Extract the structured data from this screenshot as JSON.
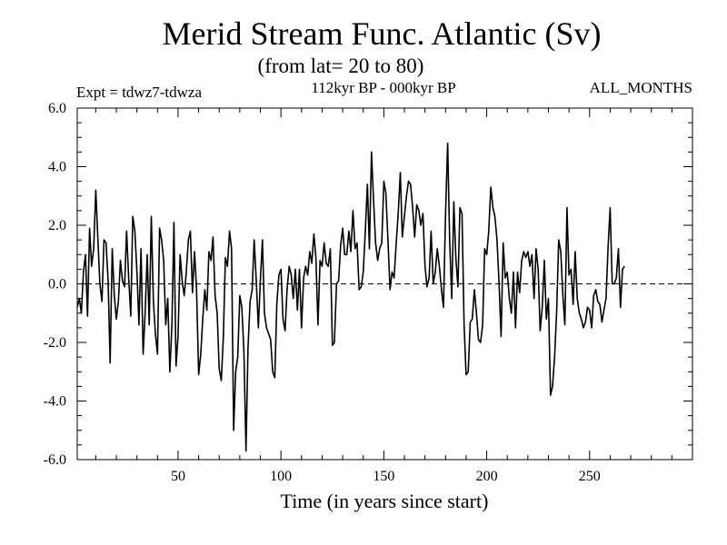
{
  "chart_data": {
    "type": "line",
    "title": "Merid Stream Func. Atlantic (Sv)",
    "subtitle": "(from lat= 20 to 80)",
    "annotations": {
      "left": "Expt = tdwz7-tdwza",
      "center": "112kyr BP - 000kyr BP",
      "right": "ALL_MONTHS"
    },
    "xlabel": "Time (in years since start)",
    "ylabel": "",
    "xlim": [
      1,
      300
    ],
    "ylim": [
      -6,
      6
    ],
    "x_ticks": [
      50,
      100,
      150,
      200,
      250
    ],
    "x_tick_labels": [
      "50",
      "100",
      "150",
      "200",
      "250"
    ],
    "y_ticks": [
      -6,
      -4,
      -2,
      0,
      2,
      4,
      6
    ],
    "y_tick_labels": [
      "-6.0",
      "-4.0",
      "-2.0",
      "0.0",
      "2.0",
      "4.0",
      "6.0"
    ],
    "grid": false,
    "zero_line": "dashed",
    "x_start": 1,
    "x_step": 1,
    "series": [
      {
        "values": [
          -0.8,
          -0.5,
          -1.0,
          0.4,
          1.0,
          -1.1,
          1.9,
          0.6,
          1.2,
          3.2,
          1.6,
          0.0,
          -0.6,
          1.5,
          1.4,
          0.1,
          -2.7,
          1.2,
          -0.4,
          -1.2,
          -0.6,
          0.8,
          0.1,
          -0.1,
          1.8,
          0.2,
          -1.1,
          2.3,
          1.8,
          0.4,
          -1.4,
          1.2,
          -2.4,
          -1.0,
          1.0,
          -1.4,
          2.3,
          -0.6,
          -1.7,
          -2.4,
          1.9,
          1.5,
          0.8,
          -1.4,
          -0.5,
          -3.0,
          -1.4,
          2.1,
          -2.8,
          -1.8,
          1.0,
          0.1,
          -0.4,
          0.4,
          1.5,
          1.8,
          -0.3,
          1.1,
          -0.2,
          -3.1,
          -2.4,
          -1.2,
          -0.2,
          -0.9,
          1.1,
          0.8,
          1.6,
          -0.4,
          -1.0,
          -2.9,
          -3.3,
          -1.8,
          0.9,
          0.6,
          1.8,
          1.2,
          -5.0,
          -3.0,
          -2.5,
          -0.4,
          -0.8,
          -2.3,
          -5.7,
          -2.2,
          -0.6,
          -0.2,
          1.5,
          0.1,
          -1.5,
          0.1,
          1.5,
          -1.0,
          -1.5,
          -1.7,
          -1.9,
          -3.0,
          -3.2,
          -0.7,
          0.3,
          0.5,
          -1.2,
          -1.6,
          -0.2,
          0.6,
          0.3,
          -0.5,
          0.5,
          -0.9,
          0.5,
          -1.5,
          0.2,
          0.6,
          0.3,
          1.1,
          0.7,
          1.7,
          0.9,
          -1.4,
          0.8,
          0.6,
          1.4,
          0.7,
          0.6,
          1.2,
          -2.1,
          -2.0,
          0.0,
          0.1,
          1.3,
          1.9,
          1.0,
          1.0,
          1.8,
          1.1,
          2.5,
          1.2,
          1.4,
          -0.2,
          -0.1,
          0.4,
          1.8,
          3.4,
          1.2,
          4.5,
          2.9,
          1.4,
          0.8,
          1.2,
          1.4,
          3.5,
          3.1,
          1.5,
          -0.2,
          0.4,
          0.2,
          1.4,
          2.4,
          3.8,
          1.6,
          2.3,
          3.0,
          3.5,
          3.4,
          2.6,
          1.6,
          2.7,
          2.5,
          2.0,
          2.4,
          0.6,
          -0.1,
          0.2,
          1.8,
          0.0,
          0.4,
          1.2,
          0.6,
          -0.2,
          -0.8,
          2.4,
          4.8,
          1.5,
          -0.5,
          2.8,
          0.9,
          -0.1,
          2.6,
          2.4,
          -1.4,
          -3.1,
          -3.0,
          -1.3,
          -1.2,
          -0.2,
          -1.0,
          -1.9,
          -2.0,
          -1.4,
          1.2,
          1.0,
          1.8,
          3.3,
          2.6,
          2.3,
          1.5,
          0.0,
          -1.8,
          1.4,
          0.2,
          0.4,
          -0.5,
          -1.0,
          0.4,
          -1.5,
          0.4,
          -0.3,
          0.8,
          1.1,
          0.9,
          1.1,
          0.6,
          1.0,
          -0.5,
          1.2,
          0.5,
          -1.6,
          -0.8,
          0.8,
          -1.2,
          -0.5,
          -3.8,
          -3.5,
          -2.5,
          -0.9,
          1.5,
          1.1,
          -0.4,
          -1.4,
          2.6,
          0.3,
          0.5,
          -0.7,
          1.1,
          -0.5,
          -1.0,
          -1.2,
          -1.5,
          -1.3,
          -0.8,
          -0.9,
          -1.5,
          -0.4,
          -0.2,
          -0.6,
          -0.7,
          -1.3,
          -0.9,
          -0.5,
          1.3,
          2.6,
          0.0,
          0.0,
          0.2,
          1.2,
          -0.8,
          0.5,
          0.6
        ]
      }
    ]
  }
}
